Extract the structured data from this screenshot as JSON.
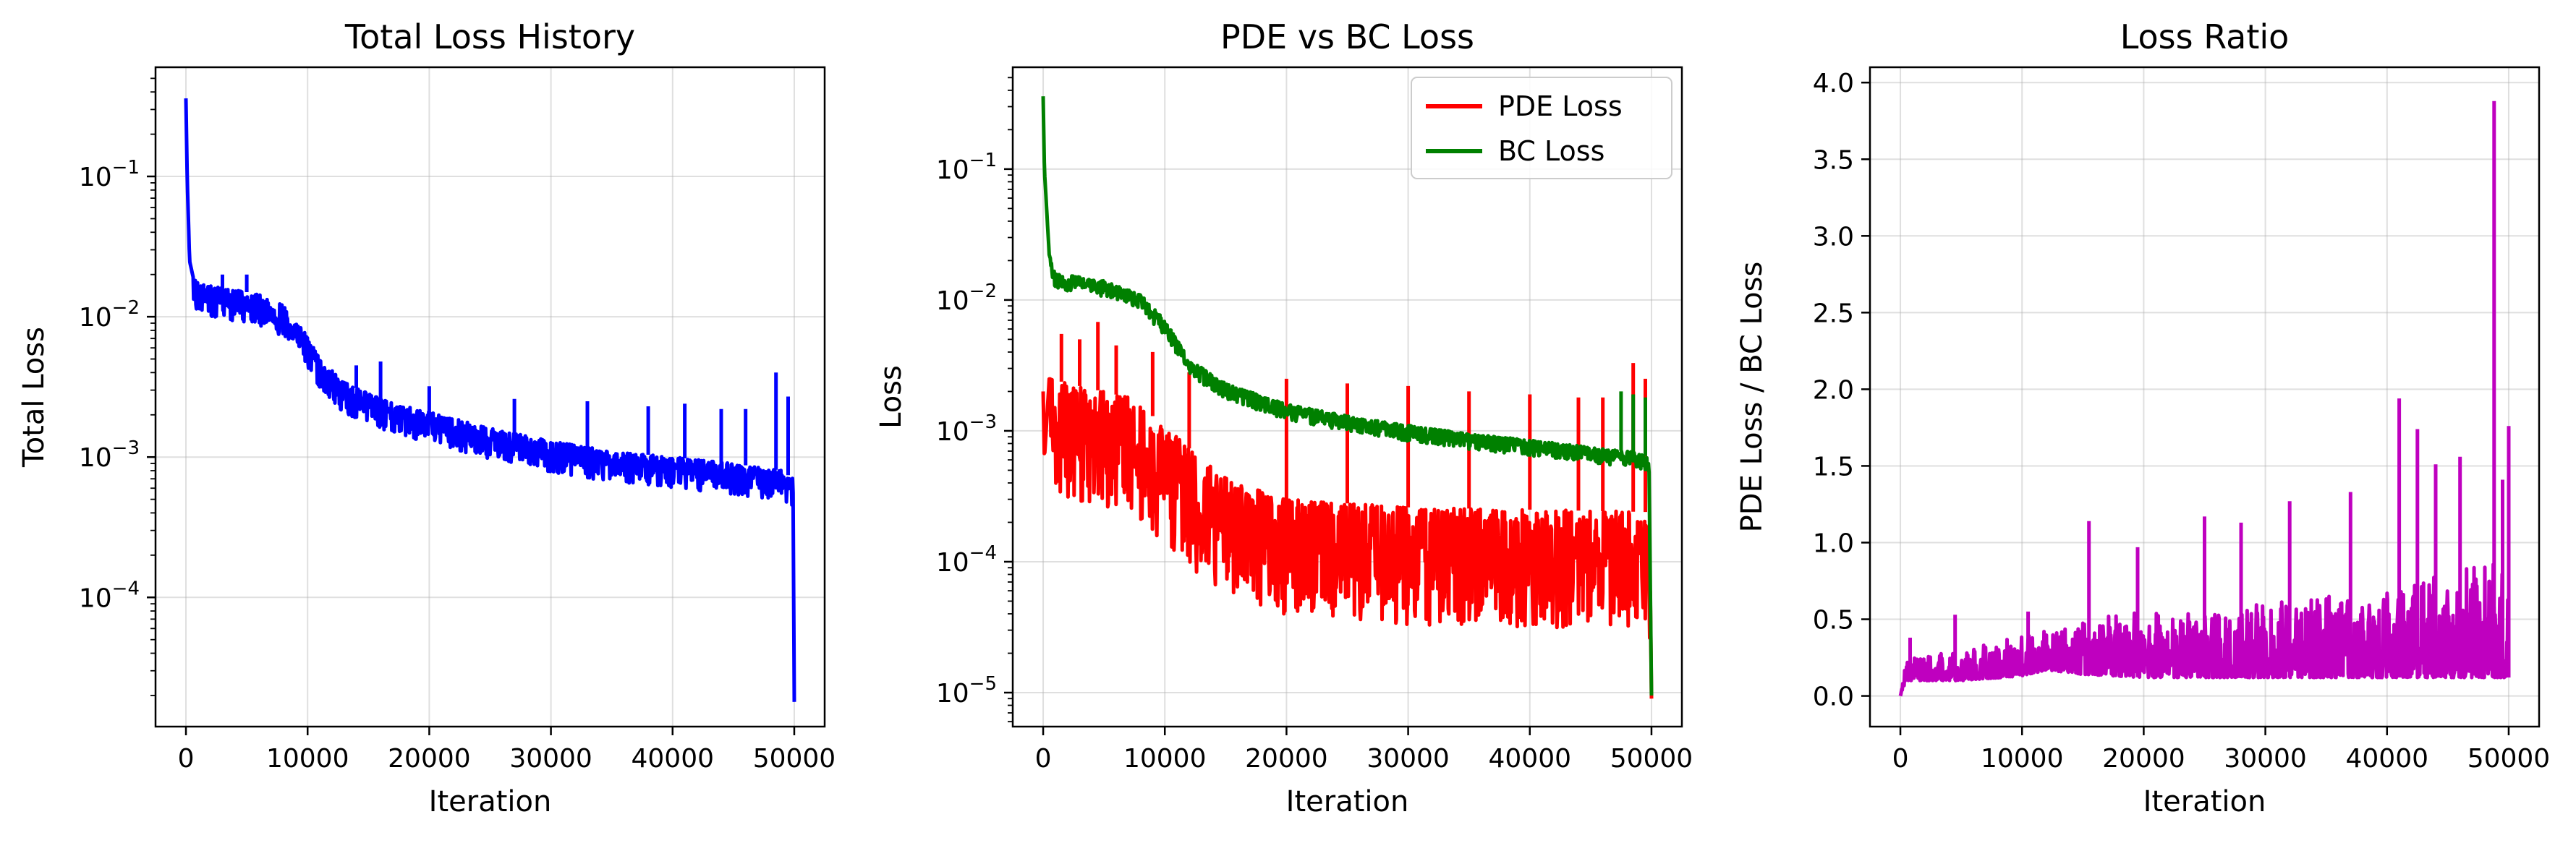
{
  "chart_data": [
    {
      "type": "line",
      "title": "Total Loss History",
      "xlabel": "Iteration",
      "ylabel": "Total Loss",
      "yscale": "log",
      "grid": true,
      "xlim": [
        -2500,
        52500
      ],
      "ylim": [
        1.2e-05,
        0.6
      ],
      "x_ticks": [
        0,
        10000,
        20000,
        30000,
        40000,
        50000
      ],
      "x_tick_labels": [
        "0",
        "10000",
        "20000",
        "30000",
        "40000",
        "50000"
      ],
      "y_ticks": [
        0.0001,
        0.001,
        0.01,
        0.1
      ],
      "y_tick_labels": [
        {
          "base": "10",
          "exp": "−4"
        },
        {
          "base": "10",
          "exp": "−3"
        },
        {
          "base": "10",
          "exp": "−2"
        },
        {
          "base": "10",
          "exp": "−1"
        }
      ],
      "series": [
        {
          "color": "#0000ff",
          "noise": 0.22,
          "points": [
            [
              0,
              0.36
            ],
            [
              100,
              0.1
            ],
            [
              300,
              0.025
            ],
            [
              600,
              0.019
            ],
            [
              1000,
              0.0175
            ],
            [
              3000,
              0.016
            ],
            [
              6000,
              0.0145
            ],
            [
              8000,
              0.012
            ],
            [
              9500,
              0.0085
            ],
            [
              11000,
              0.005
            ],
            [
              13000,
              0.0034
            ],
            [
              16000,
              0.0026
            ],
            [
              20000,
              0.0021
            ],
            [
              25000,
              0.0016
            ],
            [
              30000,
              0.0013
            ],
            [
              35000,
              0.0011
            ],
            [
              40000,
              0.001
            ],
            [
              45000,
              0.0009
            ],
            [
              49000,
              0.0008
            ],
            [
              49900,
              0.0007
            ],
            [
              50000,
              1.8e-05
            ]
          ],
          "spikes": [
            [
              3000,
              0.02
            ],
            [
              5000,
              0.02
            ],
            [
              14000,
              0.0045
            ],
            [
              16000,
              0.0048
            ],
            [
              20000,
              0.0032
            ],
            [
              27000,
              0.0026
            ],
            [
              33000,
              0.0025
            ],
            [
              38000,
              0.0023
            ],
            [
              41000,
              0.0024
            ],
            [
              44000,
              0.0022
            ],
            [
              46000,
              0.0022
            ],
            [
              48500,
              0.004
            ],
            [
              49500,
              0.0027
            ]
          ]
        }
      ]
    },
    {
      "type": "line",
      "title": "PDE vs BC Loss",
      "xlabel": "Iteration",
      "ylabel": "Loss",
      "yscale": "log",
      "grid": true,
      "legend_position": "top-right",
      "xlim": [
        -2500,
        52500
      ],
      "ylim": [
        5.5e-06,
        0.6
      ],
      "x_ticks": [
        0,
        10000,
        20000,
        30000,
        40000,
        50000
      ],
      "x_tick_labels": [
        "0",
        "10000",
        "20000",
        "30000",
        "40000",
        "50000"
      ],
      "y_ticks": [
        1e-05,
        0.0001,
        0.001,
        0.01,
        0.1
      ],
      "y_tick_labels": [
        {
          "base": "10",
          "exp": "−5"
        },
        {
          "base": "10",
          "exp": "−4"
        },
        {
          "base": "10",
          "exp": "−3"
        },
        {
          "base": "10",
          "exp": "−2"
        },
        {
          "base": "10",
          "exp": "−1"
        }
      ],
      "series": [
        {
          "name": "PDE Loss",
          "color": "#ff0000",
          "noise": 0.9,
          "points": [
            [
              0,
              0.002
            ],
            [
              100,
              0.0006
            ],
            [
              500,
              0.0025
            ],
            [
              3000,
              0.0022
            ],
            [
              7000,
              0.0018
            ],
            [
              10000,
              0.0011
            ],
            [
              13000,
              0.0006
            ],
            [
              16000,
              0.0004
            ],
            [
              20000,
              0.0003
            ],
            [
              30000,
              0.00026
            ],
            [
              40000,
              0.00025
            ],
            [
              49500,
              0.00024
            ],
            [
              49900,
              0.0002
            ],
            [
              50000,
              9e-06
            ]
          ],
          "spikes": [
            [
              1500,
              0.0055
            ],
            [
              3000,
              0.005
            ],
            [
              4500,
              0.0068
            ],
            [
              6000,
              0.0045
            ],
            [
              9000,
              0.004
            ],
            [
              12000,
              0.0028
            ],
            [
              20000,
              0.0025
            ],
            [
              25000,
              0.0023
            ],
            [
              30000,
              0.0022
            ],
            [
              35000,
              0.002
            ],
            [
              40000,
              0.0019
            ],
            [
              44000,
              0.0018
            ],
            [
              46000,
              0.0018
            ],
            [
              48500,
              0.0033
            ],
            [
              49500,
              0.0025
            ]
          ]
        },
        {
          "name": "BC Loss",
          "color": "#008000",
          "noise": 0.12,
          "points": [
            [
              0,
              0.36
            ],
            [
              100,
              0.1
            ],
            [
              500,
              0.022
            ],
            [
              1000,
              0.016
            ],
            [
              5000,
              0.014
            ],
            [
              8000,
              0.011
            ],
            [
              10000,
              0.007
            ],
            [
              12000,
              0.0035
            ],
            [
              15000,
              0.0023
            ],
            [
              20000,
              0.0016
            ],
            [
              25000,
              0.0013
            ],
            [
              30000,
              0.0011
            ],
            [
              35000,
              0.00095
            ],
            [
              40000,
              0.00085
            ],
            [
              45000,
              0.00075
            ],
            [
              49000,
              0.00068
            ],
            [
              49800,
              0.00062
            ],
            [
              50000,
              9.5e-06
            ]
          ],
          "spikes": [
            [
              47500,
              0.002
            ],
            [
              48500,
              0.0019
            ],
            [
              49500,
              0.0018
            ]
          ]
        }
      ]
    },
    {
      "type": "line",
      "title": "Loss Ratio",
      "xlabel": "Iteration",
      "ylabel": "PDE Loss / BC Loss",
      "yscale": "linear",
      "grid": true,
      "xlim": [
        -2500,
        52500
      ],
      "ylim": [
        -0.2,
        4.1
      ],
      "x_ticks": [
        0,
        10000,
        20000,
        30000,
        40000,
        50000
      ],
      "x_tick_labels": [
        "0",
        "10000",
        "20000",
        "30000",
        "40000",
        "50000"
      ],
      "y_ticks": [
        0,
        0.5,
        1,
        1.5,
        2,
        2.5,
        3,
        3.5,
        4
      ],
      "y_tick_labels": [
        "0.0",
        "0.5",
        "1.0",
        "1.5",
        "2.0",
        "2.5",
        "3.0",
        "3.5",
        "4.0"
      ],
      "series": [
        {
          "color": "#bf00bf",
          "band_low": [
            [
              0,
              0.0
            ],
            [
              200,
              0.05
            ],
            [
              500,
              0.1
            ],
            [
              5000,
              0.1
            ],
            [
              10000,
              0.13
            ],
            [
              12000,
              0.17
            ],
            [
              15000,
              0.14
            ],
            [
              20000,
              0.12
            ],
            [
              30000,
              0.12
            ],
            [
              40000,
              0.12
            ],
            [
              50000,
              0.12
            ]
          ],
          "band_high": [
            [
              0,
              0.0
            ],
            [
              500,
              0.25
            ],
            [
              5000,
              0.3
            ],
            [
              10000,
              0.4
            ],
            [
              15000,
              0.5
            ],
            [
              20000,
              0.55
            ],
            [
              30000,
              0.6
            ],
            [
              40000,
              0.7
            ],
            [
              45000,
              0.8
            ],
            [
              50000,
              0.9
            ]
          ],
          "spikes": [
            [
              800,
              0.38
            ],
            [
              4500,
              0.53
            ],
            [
              10500,
              0.55
            ],
            [
              15500,
              1.14
            ],
            [
              19500,
              0.97
            ],
            [
              25000,
              1.17
            ],
            [
              28000,
              1.13
            ],
            [
              32000,
              1.27
            ],
            [
              37000,
              1.33
            ],
            [
              41000,
              1.94
            ],
            [
              42500,
              1.74
            ],
            [
              44000,
              1.51
            ],
            [
              46000,
              1.56
            ],
            [
              48800,
              3.88
            ],
            [
              49500,
              1.41
            ],
            [
              50000,
              1.76
            ]
          ]
        }
      ]
    }
  ]
}
